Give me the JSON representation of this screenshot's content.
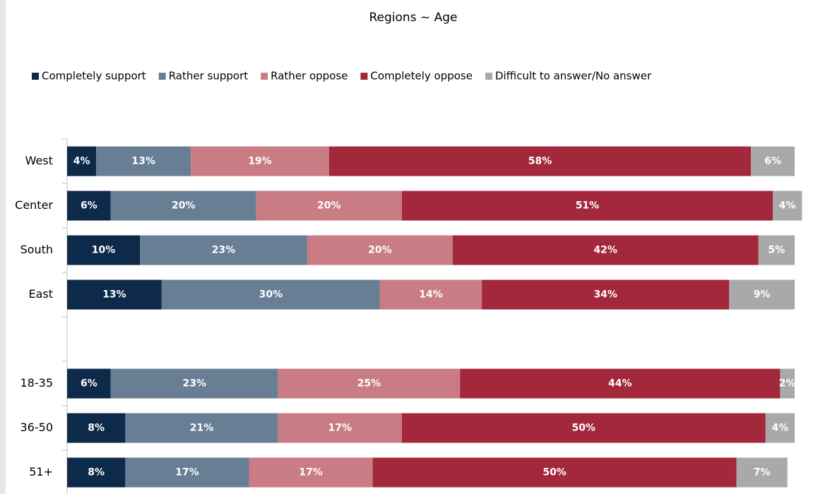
{
  "chart_data": {
    "type": "stacked-bar-horizontal",
    "title": "Regions ~ Age",
    "categories": [
      "West",
      "Center",
      "South",
      "East",
      null,
      "18-35",
      "36-50",
      "51+"
    ],
    "xlim": [
      0,
      100
    ],
    "legend": "top",
    "series": [
      {
        "name": "Completely support",
        "color": "#0e2a4b",
        "values": [
          4,
          6,
          10,
          13,
          null,
          6,
          8,
          8
        ],
        "value_labels": [
          "4%",
          "6%",
          "10%",
          "13%",
          null,
          "6%",
          "8%",
          "8%"
        ]
      },
      {
        "name": "Rather support",
        "color": "#687e95",
        "values": [
          13,
          20,
          23,
          30,
          null,
          23,
          21,
          17
        ],
        "value_labels": [
          "13%",
          "20%",
          "23%",
          "30%",
          null,
          "23%",
          "21%",
          "17%"
        ]
      },
      {
        "name": "Rather oppose",
        "color": "#c97c84",
        "values": [
          19,
          20,
          20,
          14,
          null,
          25,
          17,
          17
        ],
        "value_labels": [
          "19%",
          "20%",
          "20%",
          "14%",
          null,
          "25%",
          "17%",
          "17%"
        ]
      },
      {
        "name": "Completely oppose",
        "color": "#a3283b",
        "values": [
          58,
          51,
          42,
          34,
          null,
          44,
          50,
          50
        ],
        "value_labels": [
          "58%",
          "51%",
          "42%",
          "34%",
          null,
          "44%",
          "50%",
          "50%"
        ]
      },
      {
        "name": "Difficult to answer/No answer",
        "color": "#a9a9a9",
        "values": [
          6,
          4,
          5,
          9,
          null,
          2,
          4,
          7
        ],
        "value_labels": [
          "6%",
          "4%",
          "5%",
          "9%",
          null,
          "2%",
          "4%",
          "7%"
        ]
      }
    ]
  }
}
